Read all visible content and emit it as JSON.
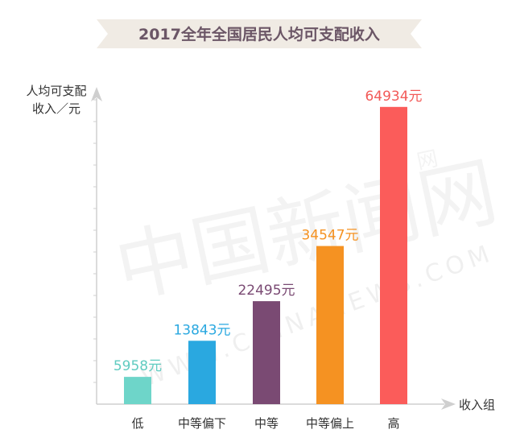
{
  "watermark": {
    "cn": "中国新闻网",
    "en": "WWW.CHINANEWS.COM",
    "tag": "网"
  },
  "chart_data": {
    "type": "bar",
    "title": "2017全年全国居民人均可支配收入",
    "ylabel_line1": "人均可支配",
    "ylabel_line2": "收入／元",
    "xlabel": "收入组",
    "categories": [
      "低",
      "中等偏下",
      "中等",
      "中等偏上",
      "高"
    ],
    "values": [
      5958,
      13843,
      22495,
      34547,
      64934
    ],
    "value_labels": [
      "5958元",
      "13843元",
      "22495元",
      "34547元",
      "64934元"
    ],
    "colors": [
      "#6ed5c9",
      "#2aa8e0",
      "#7a4a73",
      "#f59222",
      "#fb5c5a"
    ],
    "label_colors": [
      "#5fcbc0",
      "#2aa8e0",
      "#7a4a73",
      "#f59222",
      "#f25a58"
    ],
    "ylim": [
      0,
      70000
    ],
    "grid": false,
    "legend": "none"
  }
}
